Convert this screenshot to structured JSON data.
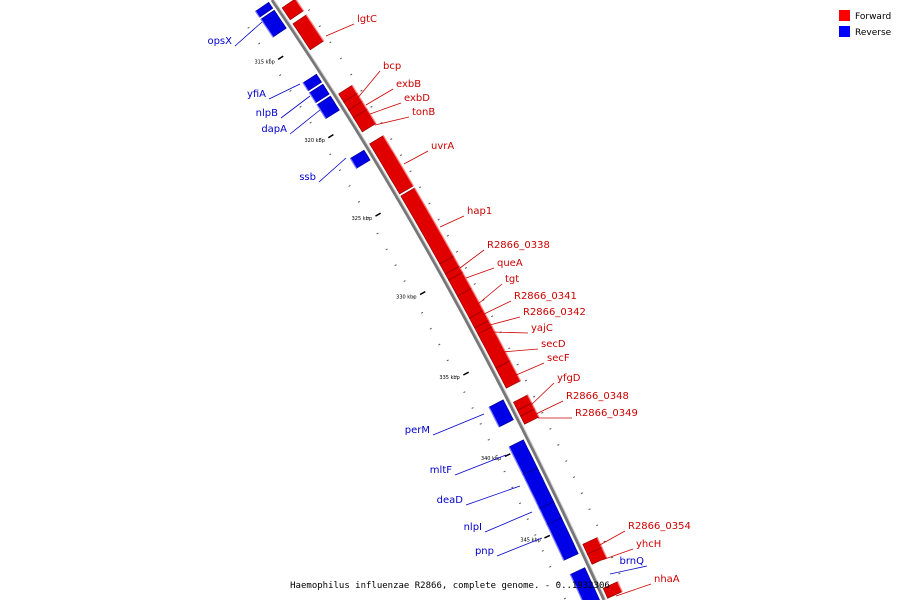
{
  "caption": "Haemophilus influenzae R2866, complete genome. - 0..1932306",
  "legend": {
    "forward_label": "Forward",
    "reverse_label": "Reverse",
    "forward_color": "#ff0000",
    "reverse_color": "#0000ff"
  },
  "colors": {
    "forward": "#e00000",
    "reverse": "#0000e6",
    "backbone": "#808080"
  },
  "ticks": [
    {
      "label": "315 kbp"
    },
    {
      "label": "320 kbp"
    },
    {
      "label": "325 kbp"
    },
    {
      "label": "330 kbp"
    },
    {
      "label": "335 kbp"
    },
    {
      "label": "340 kbp"
    },
    {
      "label": "345 kbp"
    }
  ],
  "genes": [
    {
      "name": "",
      "strand": "reverse"
    },
    {
      "name": "opsX",
      "strand": "reverse"
    },
    {
      "name": "",
      "strand": "forward"
    },
    {
      "name": "lgtC",
      "strand": "forward"
    },
    {
      "name": "yfiA",
      "strand": "reverse"
    },
    {
      "name": "nlpB",
      "strand": "reverse"
    },
    {
      "name": "dapA",
      "strand": "reverse"
    },
    {
      "name": "bcp",
      "strand": "forward"
    },
    {
      "name": "exbB",
      "strand": "forward"
    },
    {
      "name": "exbD",
      "strand": "forward"
    },
    {
      "name": "tonB",
      "strand": "forward"
    },
    {
      "name": "ssb",
      "strand": "reverse"
    },
    {
      "name": "uvrA",
      "strand": "forward"
    },
    {
      "name": "hap1",
      "strand": "forward"
    },
    {
      "name": "R2866_0338",
      "strand": "forward"
    },
    {
      "name": "queA",
      "strand": "forward"
    },
    {
      "name": "tgt",
      "strand": "forward"
    },
    {
      "name": "R2866_0341",
      "strand": "forward"
    },
    {
      "name": "R2866_0342",
      "strand": "forward"
    },
    {
      "name": "yajC",
      "strand": "forward"
    },
    {
      "name": "secD",
      "strand": "forward"
    },
    {
      "name": "secF",
      "strand": "forward"
    },
    {
      "name": "perM",
      "strand": "reverse"
    },
    {
      "name": "yfgD",
      "strand": "forward"
    },
    {
      "name": "R2866_0348",
      "strand": "forward"
    },
    {
      "name": "R2866_0349",
      "strand": "forward"
    },
    {
      "name": "mltF",
      "strand": "reverse"
    },
    {
      "name": "deaD",
      "strand": "reverse"
    },
    {
      "name": "nlpI",
      "strand": "reverse"
    },
    {
      "name": "pnp",
      "strand": "reverse"
    },
    {
      "name": "R2866_0354",
      "strand": "forward"
    },
    {
      "name": "yhcH",
      "strand": "forward"
    },
    {
      "name": "brnQ",
      "strand": "reverse"
    },
    {
      "name": "nhaA",
      "strand": "forward"
    }
  ]
}
